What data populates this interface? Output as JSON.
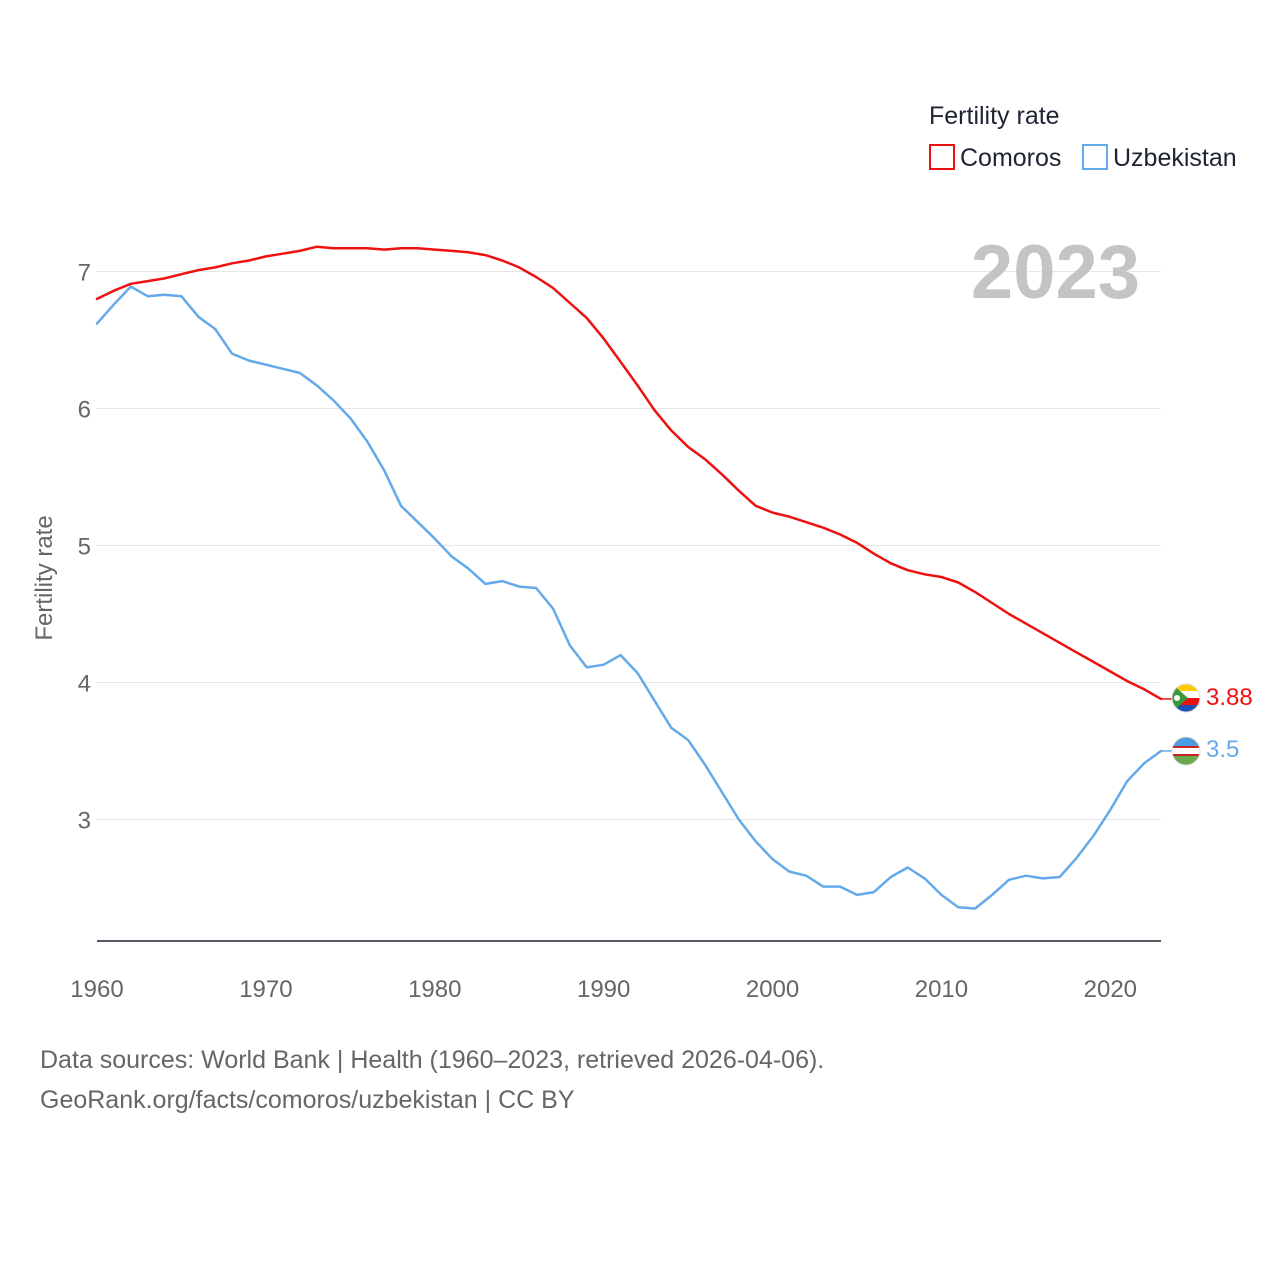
{
  "chart_data": {
    "type": "line",
    "ylabel": "Fertility rate",
    "xlabel": "",
    "year_watermark": "2023",
    "legend": {
      "title": "Fertility rate",
      "position": "top-right"
    },
    "xlim": [
      1960,
      2023
    ],
    "ylim": [
      2.1,
      7.5
    ],
    "x_ticks": [
      "1960",
      "1970",
      "1980",
      "1990",
      "2000",
      "2010",
      "2020"
    ],
    "y_ticks": [
      "3",
      "4",
      "5",
      "6",
      "7"
    ],
    "x": [
      1960,
      1961,
      1962,
      1963,
      1964,
      1965,
      1966,
      1967,
      1968,
      1969,
      1970,
      1971,
      1972,
      1973,
      1974,
      1975,
      1976,
      1977,
      1978,
      1979,
      1980,
      1981,
      1982,
      1983,
      1984,
      1985,
      1986,
      1987,
      1988,
      1989,
      1990,
      1991,
      1992,
      1993,
      1994,
      1995,
      1996,
      1997,
      1998,
      1999,
      2000,
      2001,
      2002,
      2003,
      2004,
      2005,
      2006,
      2007,
      2008,
      2009,
      2010,
      2011,
      2012,
      2013,
      2014,
      2015,
      2016,
      2017,
      2018,
      2019,
      2020,
      2021,
      2022,
      2023
    ],
    "series": [
      {
        "name": "Comoros",
        "color": "#ee1111",
        "end_label": "3.88",
        "flag_icon": "comoros-flag-icon",
        "values": [
          6.8,
          6.86,
          6.91,
          6.93,
          6.95,
          6.98,
          7.01,
          7.03,
          7.06,
          7.08,
          7.11,
          7.13,
          7.15,
          7.18,
          7.17,
          7.17,
          7.17,
          7.16,
          7.17,
          7.17,
          7.16,
          7.15,
          7.14,
          7.12,
          7.08,
          7.03,
          6.96,
          6.88,
          6.77,
          6.66,
          6.51,
          6.34,
          6.17,
          5.99,
          5.84,
          5.72,
          5.63,
          5.52,
          5.4,
          5.29,
          5.24,
          5.21,
          5.17,
          5.13,
          5.08,
          5.02,
          4.94,
          4.87,
          4.82,
          4.79,
          4.77,
          4.73,
          4.66,
          4.58,
          4.5,
          4.43,
          4.36,
          4.29,
          4.22,
          4.15,
          4.08,
          4.01,
          3.95,
          3.88
        ]
      },
      {
        "name": "Uzbekistan",
        "color": "#64aaea",
        "end_label": "3.5",
        "flag_icon": "uzbekistan-flag-icon",
        "values": [
          6.62,
          6.76,
          6.89,
          6.82,
          6.83,
          6.82,
          6.67,
          6.58,
          6.4,
          6.35,
          6.32,
          6.29,
          6.26,
          6.17,
          6.06,
          5.93,
          5.76,
          5.55,
          5.29,
          5.17,
          5.05,
          4.92,
          4.83,
          4.72,
          4.74,
          4.7,
          4.69,
          4.54,
          4.27,
          4.11,
          4.13,
          4.2,
          4.07,
          3.87,
          3.67,
          3.58,
          3.4,
          3.2,
          3.0,
          2.84,
          2.71,
          2.62,
          2.59,
          2.51,
          2.51,
          2.45,
          2.47,
          2.58,
          2.65,
          2.57,
          2.45,
          2.36,
          2.35,
          2.45,
          2.56,
          2.59,
          2.57,
          2.58,
          2.72,
          2.88,
          3.07,
          3.28,
          3.41,
          3.5
        ]
      }
    ]
  },
  "footer": {
    "line1": "Data sources: World Bank | Health (1960–2023, retrieved 2026-04-06).",
    "line2": "GeoRank.org/facts/comoros/uzbekistan | CC BY"
  }
}
